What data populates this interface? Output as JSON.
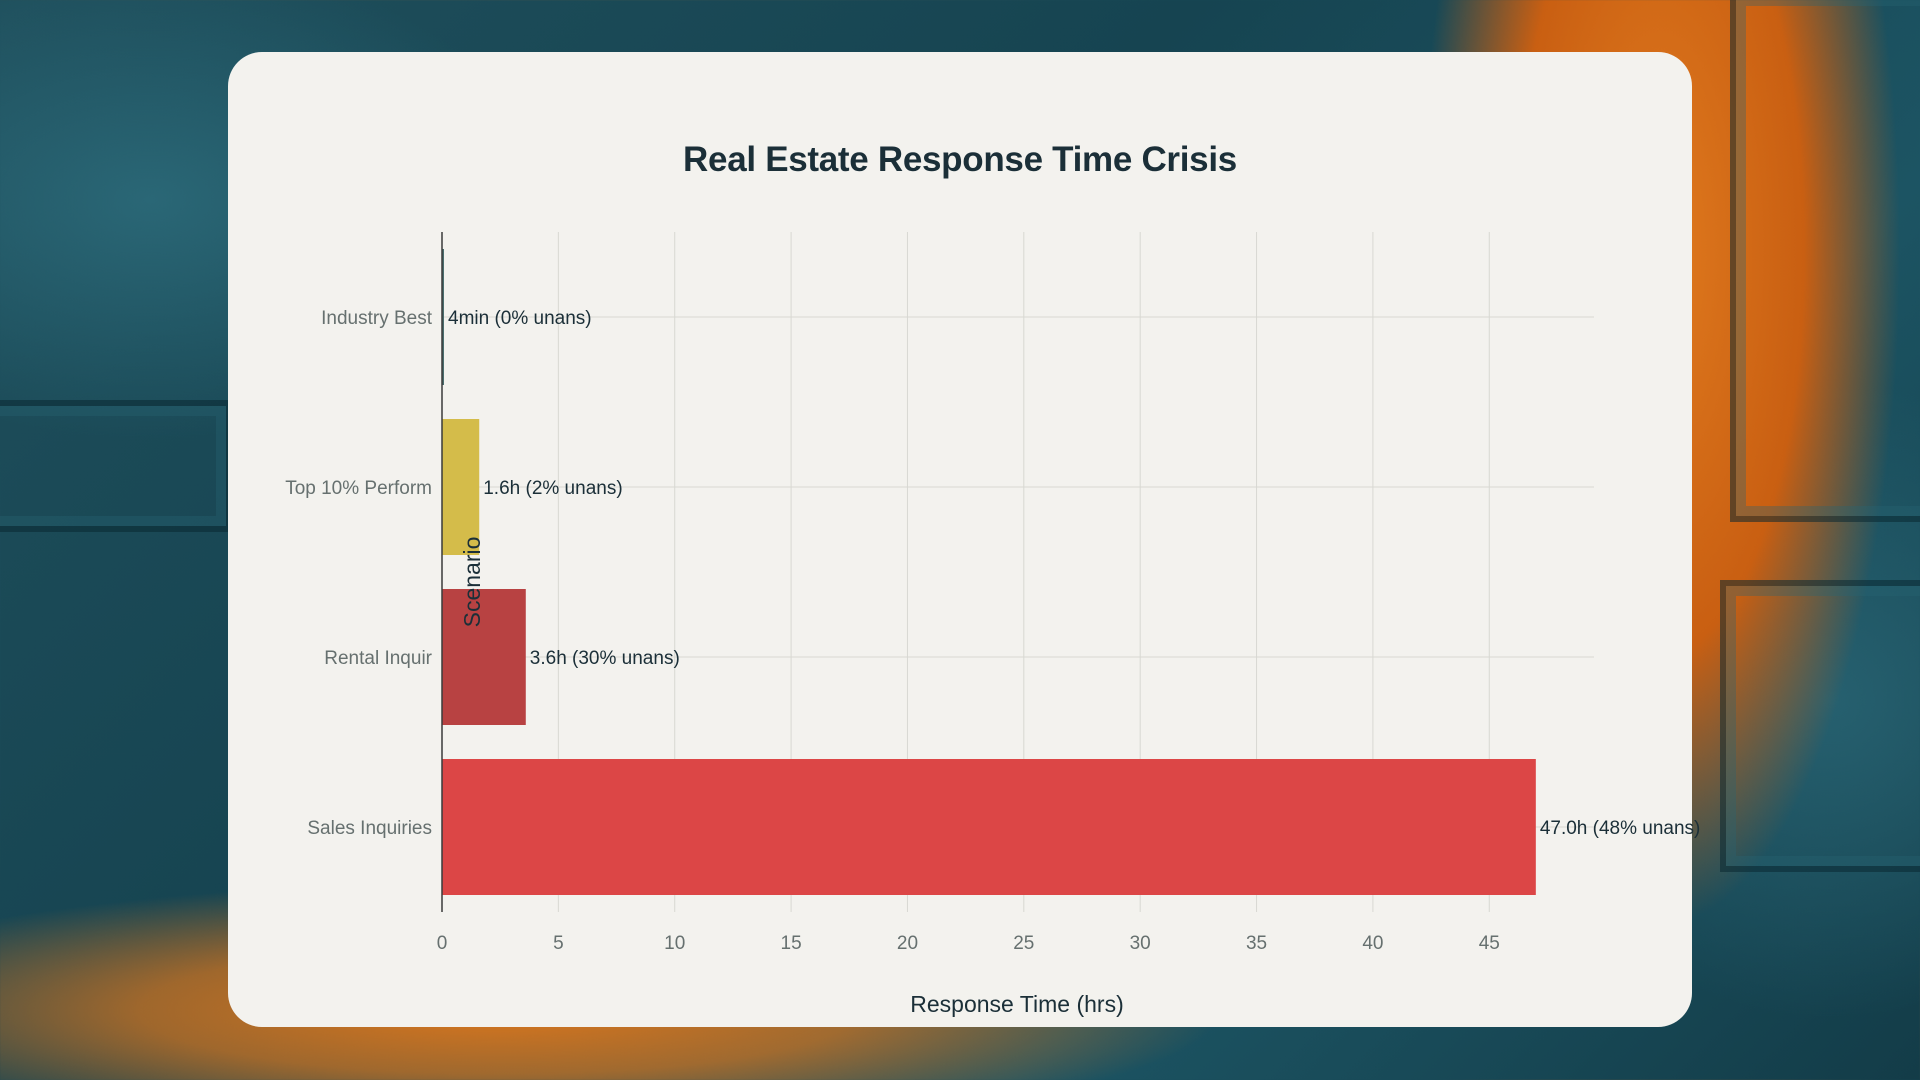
{
  "chart_data": {
    "type": "bar",
    "orientation": "horizontal",
    "title": "Real Estate Response Time Crisis",
    "xlabel": "Response Time (hrs)",
    "ylabel": "Scenario",
    "xlim": [
      0,
      49.5
    ],
    "xticks": [
      0,
      5,
      10,
      15,
      20,
      25,
      30,
      35,
      40,
      45
    ],
    "grid": true,
    "categories": [
      "Industry Best",
      "Top 10% Perform",
      "Rental Inquir",
      "Sales Inquiries"
    ],
    "values": [
      0.067,
      1.6,
      3.6,
      47.0
    ],
    "data_labels": [
      "4min (0% unans)",
      "1.6h (2% unans)",
      "3.6h (30% unans)",
      "47.0h (48% unans)"
    ],
    "colors": [
      "#4a6e6e",
      "#d4bc4a",
      "#b84242",
      "#dc4646"
    ]
  }
}
